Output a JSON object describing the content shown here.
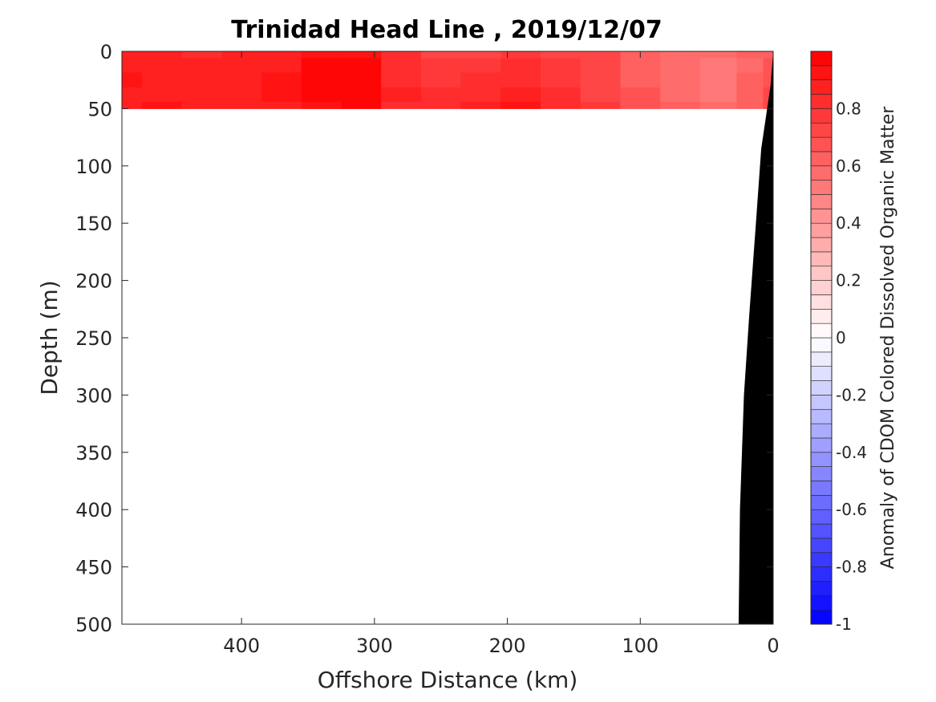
{
  "chart_data": {
    "type": "heatmap",
    "title": "Trinidad Head Line , 2019/12/07",
    "xlabel": "Offshore Distance (km)",
    "ylabel": "Depth (m)",
    "xlim": [
      490,
      0
    ],
    "ylim": [
      0,
      500
    ],
    "x_reversed": true,
    "y_reversed": true,
    "x_ticks": [
      {
        "value": 400,
        "label": "400"
      },
      {
        "value": 300,
        "label": "300"
      },
      {
        "value": 200,
        "label": "200"
      },
      {
        "value": 100,
        "label": "100"
      },
      {
        "value": 0,
        "label": "0"
      }
    ],
    "y_ticks": [
      {
        "value": 0,
        "label": "0"
      },
      {
        "value": 50,
        "label": "50"
      },
      {
        "value": 100,
        "label": "100"
      },
      {
        "value": 150,
        "label": "150"
      },
      {
        "value": 200,
        "label": "200"
      },
      {
        "value": 250,
        "label": "250"
      },
      {
        "value": 300,
        "label": "300"
      },
      {
        "value": 350,
        "label": "350"
      },
      {
        "value": 400,
        "label": "400"
      },
      {
        "value": 450,
        "label": "450"
      },
      {
        "value": 500,
        "label": "500"
      }
    ],
    "colorbar": {
      "label": "Anomaly of CDOM Colored Dissolved Organic Matter",
      "clim": [
        -1,
        1
      ],
      "levels": 40,
      "colormap": "blue-white-red",
      "color_low": "#0000ff",
      "color_mid": "#ffffff",
      "color_high": "#ff0000",
      "ticks": [
        {
          "value": 0.8,
          "label": "0.8"
        },
        {
          "value": 0.6,
          "label": "0.6"
        },
        {
          "value": 0.4,
          "label": "0.4"
        },
        {
          "value": 0.2,
          "label": "0.2"
        },
        {
          "value": 0,
          "label": "0"
        },
        {
          "value": -0.2,
          "label": "-0.2"
        },
        {
          "value": -0.4,
          "label": "-0.4"
        },
        {
          "value": -0.6,
          "label": "-0.6"
        },
        {
          "value": -0.8,
          "label": "-0.8"
        },
        {
          "value": -1,
          "label": "-1"
        }
      ]
    },
    "field": {
      "depth_range": [
        0,
        50
      ],
      "x": [
        490,
        460,
        430,
        400,
        370,
        340,
        310,
        280,
        250,
        220,
        190,
        160,
        130,
        100,
        70,
        40,
        15,
        0
      ],
      "depths": [
        0,
        12,
        25,
        38,
        50
      ],
      "values": [
        [
          0.88,
          0.86,
          0.84,
          0.86,
          0.88,
          0.92,
          0.93,
          0.8,
          0.72,
          0.74,
          0.78,
          0.74,
          0.7,
          0.65,
          0.58,
          0.55,
          0.6,
          0.65
        ],
        [
          0.9,
          0.88,
          0.86,
          0.88,
          0.9,
          0.95,
          0.95,
          0.82,
          0.75,
          0.78,
          0.82,
          0.76,
          0.7,
          0.62,
          0.55,
          0.5,
          0.58,
          0.66
        ],
        [
          0.91,
          0.89,
          0.88,
          0.9,
          0.92,
          0.96,
          0.96,
          0.84,
          0.78,
          0.8,
          0.84,
          0.78,
          0.72,
          0.64,
          0.56,
          0.52,
          0.6,
          0.68
        ],
        [
          0.9,
          0.9,
          0.88,
          0.9,
          0.92,
          0.96,
          0.96,
          0.86,
          0.8,
          0.84,
          0.86,
          0.8,
          0.74,
          0.66,
          0.58,
          0.54,
          0.62,
          0.7
        ],
        [
          0.88,
          0.92,
          0.88,
          0.88,
          0.9,
          0.94,
          0.96,
          0.84,
          0.8,
          0.86,
          0.92,
          0.82,
          0.75,
          0.66,
          0.6,
          0.56,
          0.64,
          0.7
        ]
      ]
    },
    "bathymetry": {
      "color": "#000000",
      "points": [
        [
          0,
          0
        ],
        [
          2,
          30
        ],
        [
          9,
          85
        ],
        [
          13,
          150
        ],
        [
          18,
          230
        ],
        [
          22,
          300
        ],
        [
          25,
          400
        ],
        [
          26,
          500
        ]
      ]
    }
  }
}
